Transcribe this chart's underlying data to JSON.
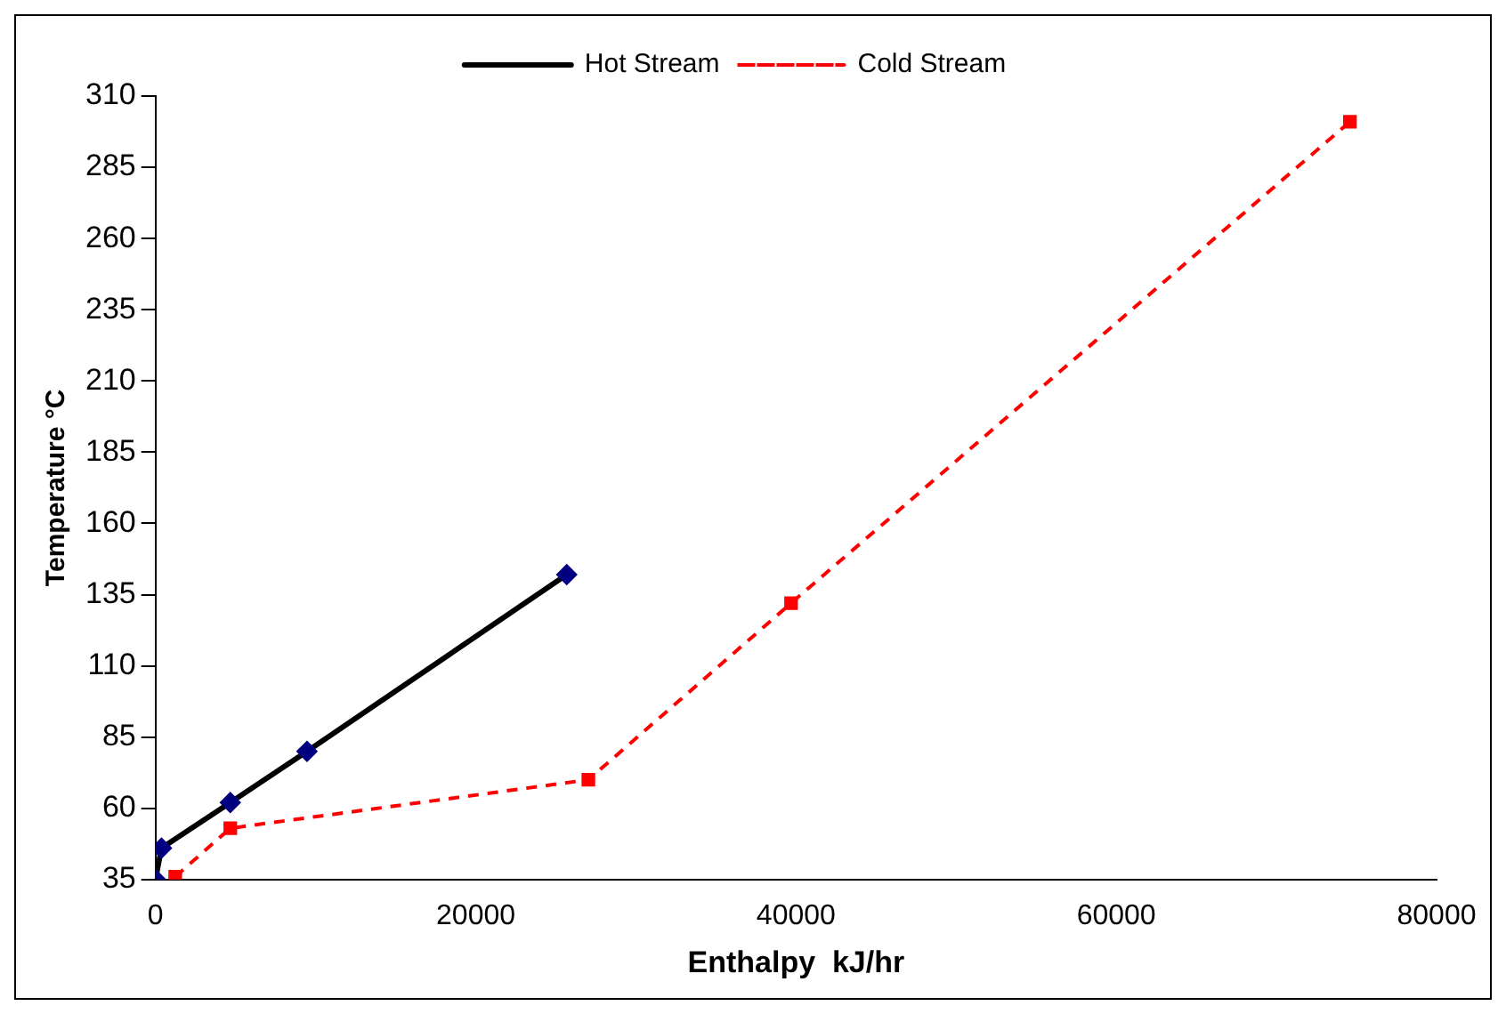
{
  "chart_data": {
    "type": "line",
    "xlabel": "Enthalpy  kJ/hr",
    "ylabel": "Temperature °C",
    "xlim": [
      0,
      80000
    ],
    "xticks": [
      0,
      20000,
      40000,
      60000,
      80000
    ],
    "ylim": [
      35,
      310
    ],
    "yticks": [
      35,
      60,
      85,
      110,
      135,
      160,
      185,
      210,
      235,
      260,
      285,
      310
    ],
    "grid": false,
    "legend": "top",
    "series": [
      {
        "name": "Hot Stream",
        "color": "#000000",
        "marker": "diamond",
        "line_style": "solid",
        "x": [
          0,
          370,
          4670,
          9460,
          25680
        ],
        "values": [
          35,
          46,
          62,
          80,
          142
        ]
      },
      {
        "name": "Cold Stream",
        "color": "#ff0000",
        "marker": "square",
        "line_style": "dashed",
        "x": [
          1230,
          4670,
          27030,
          39690,
          74590
        ],
        "values": [
          36,
          53,
          70,
          132,
          301
        ]
      }
    ]
  }
}
